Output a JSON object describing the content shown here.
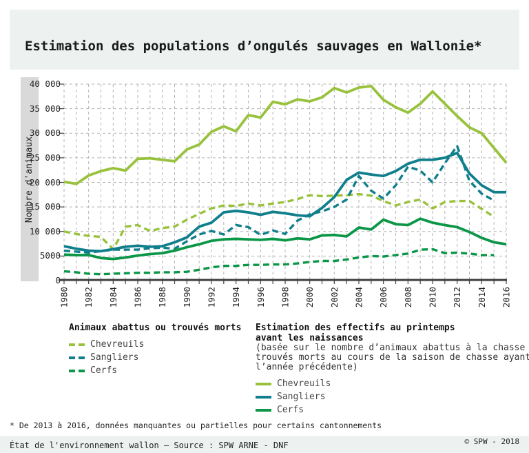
{
  "title": "Estimation des populations d’ongulés sauvages en Wallonie*",
  "footnote": "* De 2013 à 2016, données manquantes ou partielles pour certains cantonnements",
  "footer": {
    "left": "État de l'environnement wallon – Source : SPW ARNE - DNF",
    "right": "© SPW - 2018"
  },
  "colors": {
    "chevreuils": "#98c23c",
    "sangliers": "#107f8c",
    "cerfs": "#0b9648",
    "grid": "#b3b3b3",
    "axis": "#3d3d3d",
    "title_band_bg": "#edf2f0",
    "footer_band_bg": "#edf2f0",
    "ylabel_band_bg": "#d9d9d9"
  },
  "legend_left": {
    "title": "Animaux abattus ou trouvés morts",
    "items": [
      {
        "id": "chevreuils-abattus",
        "label": "Chevreuils",
        "color": "#98c23c",
        "dashed": true
      },
      {
        "id": "sangliers-abattus",
        "label": "Sangliers",
        "color": "#107f8c",
        "dashed": true
      },
      {
        "id": "cerfs-abattus",
        "label": "Cerfs",
        "color": "#0b9648",
        "dashed": true
      }
    ]
  },
  "legend_right": {
    "title_lines": [
      "Estimation des effectifs au printemps",
      "avant les naissances"
    ],
    "note_lines": [
      "(basée sur le nombre d’animaux abattus à la chasse",
      "trouvés morts au cours de la saison de chasse ayant",
      "l’année précédente)"
    ],
    "items": [
      {
        "id": "chevreuils-estimation",
        "label": "Chevreuils",
        "color": "#98c23c",
        "dashed": false
      },
      {
        "id": "sangliers-estimation",
        "label": "Sangliers",
        "color": "#107f8c",
        "dashed": false
      },
      {
        "id": "cerfs-estimation",
        "label": "Cerfs",
        "color": "#0b9648",
        "dashed": false
      }
    ]
  },
  "chart_data": {
    "type": "line",
    "title": "Estimation des populations d’ongulés sauvages en Wallonie",
    "xlabel": "",
    "ylabel": "Nombre d'animaux",
    "ylim": [
      0,
      40000
    ],
    "grid": true,
    "x": [
      1980,
      1981,
      1982,
      1983,
      1984,
      1985,
      1986,
      1987,
      1988,
      1989,
      1990,
      1991,
      1992,
      1993,
      1994,
      1995,
      1996,
      1997,
      1998,
      1999,
      2000,
      2001,
      2002,
      2003,
      2004,
      2005,
      2006,
      2007,
      2008,
      2009,
      2010,
      2011,
      2012,
      2013,
      2014,
      2015,
      2016
    ],
    "x_tick_step": 2,
    "y_ticks": [
      {
        "value": 0,
        "label": "0"
      },
      {
        "value": 5000,
        "label": "5000"
      },
      {
        "value": 10000,
        "label": "10 000"
      },
      {
        "value": 15000,
        "label": "15 000"
      },
      {
        "value": 20000,
        "label": "20 000"
      },
      {
        "value": 25000,
        "label": "25 000"
      },
      {
        "value": 30000,
        "label": "30 000"
      },
      {
        "value": 35000,
        "label": "35 000"
      },
      {
        "value": 40000,
        "label": "40 000"
      }
    ],
    "series": [
      {
        "id": "chevreuils-abattus",
        "name": "Chevreuils – animaux abattus ou trouvés morts",
        "color": "#98c23c",
        "dashed": true,
        "values": [
          10000,
          9500,
          9100,
          8900,
          6400,
          11000,
          11300,
          10100,
          10700,
          11000,
          12400,
          13600,
          14700,
          15300,
          15200,
          15700,
          15300,
          15700,
          16000,
          16600,
          17400,
          17200,
          17300,
          17400,
          17600,
          17300,
          16200,
          15300,
          16000,
          16500,
          14700,
          16000,
          16200,
          16200,
          14600,
          13000,
          null
        ]
      },
      {
        "id": "sangliers-abattus",
        "name": "Sangliers – animaux abattus ou trouvés morts",
        "color": "#107f8c",
        "dashed": true,
        "values": [
          6100,
          5900,
          5700,
          6000,
          6300,
          6300,
          6300,
          6600,
          6700,
          6500,
          8000,
          9400,
          10100,
          9400,
          11300,
          10900,
          9300,
          10200,
          9500,
          12200,
          13500,
          14100,
          15000,
          16500,
          21300,
          18300,
          16700,
          19400,
          23200,
          22400,
          20000,
          23900,
          27400,
          20300,
          17700,
          16300,
          null
        ]
      },
      {
        "id": "cerfs-abattus",
        "name": "Cerfs – animaux abattus ou trouvés morts",
        "color": "#0b9648",
        "dashed": true,
        "values": [
          1900,
          1700,
          1400,
          1300,
          1400,
          1500,
          1600,
          1600,
          1700,
          1700,
          1800,
          2200,
          2700,
          3000,
          3000,
          3200,
          3200,
          3300,
          3300,
          3500,
          3800,
          4000,
          4000,
          4300,
          4700,
          5000,
          4900,
          5200,
          5500,
          6300,
          6400,
          5600,
          5700,
          5500,
          5200,
          5200,
          null
        ]
      },
      {
        "id": "chevreuils-estimation",
        "name": "Chevreuils – estimation des effectifs au printemps",
        "color": "#98c23c",
        "dashed": false,
        "values": [
          20100,
          19700,
          21400,
          22300,
          22900,
          22400,
          24800,
          24900,
          24600,
          24300,
          26700,
          27700,
          30300,
          31400,
          30400,
          33700,
          33200,
          36400,
          35900,
          36900,
          36500,
          37300,
          39200,
          38300,
          39300,
          39600,
          36800,
          35300,
          34200,
          36000,
          38500,
          36000,
          33500,
          31200,
          30000,
          27000,
          24000
        ]
      },
      {
        "id": "sangliers-estimation",
        "name": "Sangliers – estimation des effectifs au printemps",
        "color": "#107f8c",
        "dashed": false,
        "values": [
          7000,
          6500,
          6100,
          6000,
          6400,
          6900,
          7100,
          6900,
          7000,
          7800,
          8800,
          11000,
          11800,
          13900,
          14200,
          13900,
          13400,
          14000,
          13700,
          13300,
          13100,
          14800,
          17000,
          20500,
          22000,
          21600,
          21300,
          22300,
          23800,
          24600,
          24600,
          25000,
          26000,
          21800,
          19400,
          18000,
          18000
        ]
      },
      {
        "id": "cerfs-estimation",
        "name": "Cerfs – estimation des effectifs au printemps",
        "color": "#0b9648",
        "dashed": false,
        "values": [
          5300,
          5200,
          5200,
          4600,
          4400,
          4700,
          5100,
          5400,
          5600,
          6100,
          6800,
          7400,
          8100,
          8400,
          8500,
          8400,
          8300,
          8500,
          8200,
          8600,
          8400,
          9200,
          9300,
          9000,
          10800,
          10400,
          12400,
          11500,
          11300,
          12600,
          11800,
          11300,
          10900,
          9900,
          8700,
          7800,
          7400
        ]
      }
    ],
    "legend_position": "bottom"
  }
}
